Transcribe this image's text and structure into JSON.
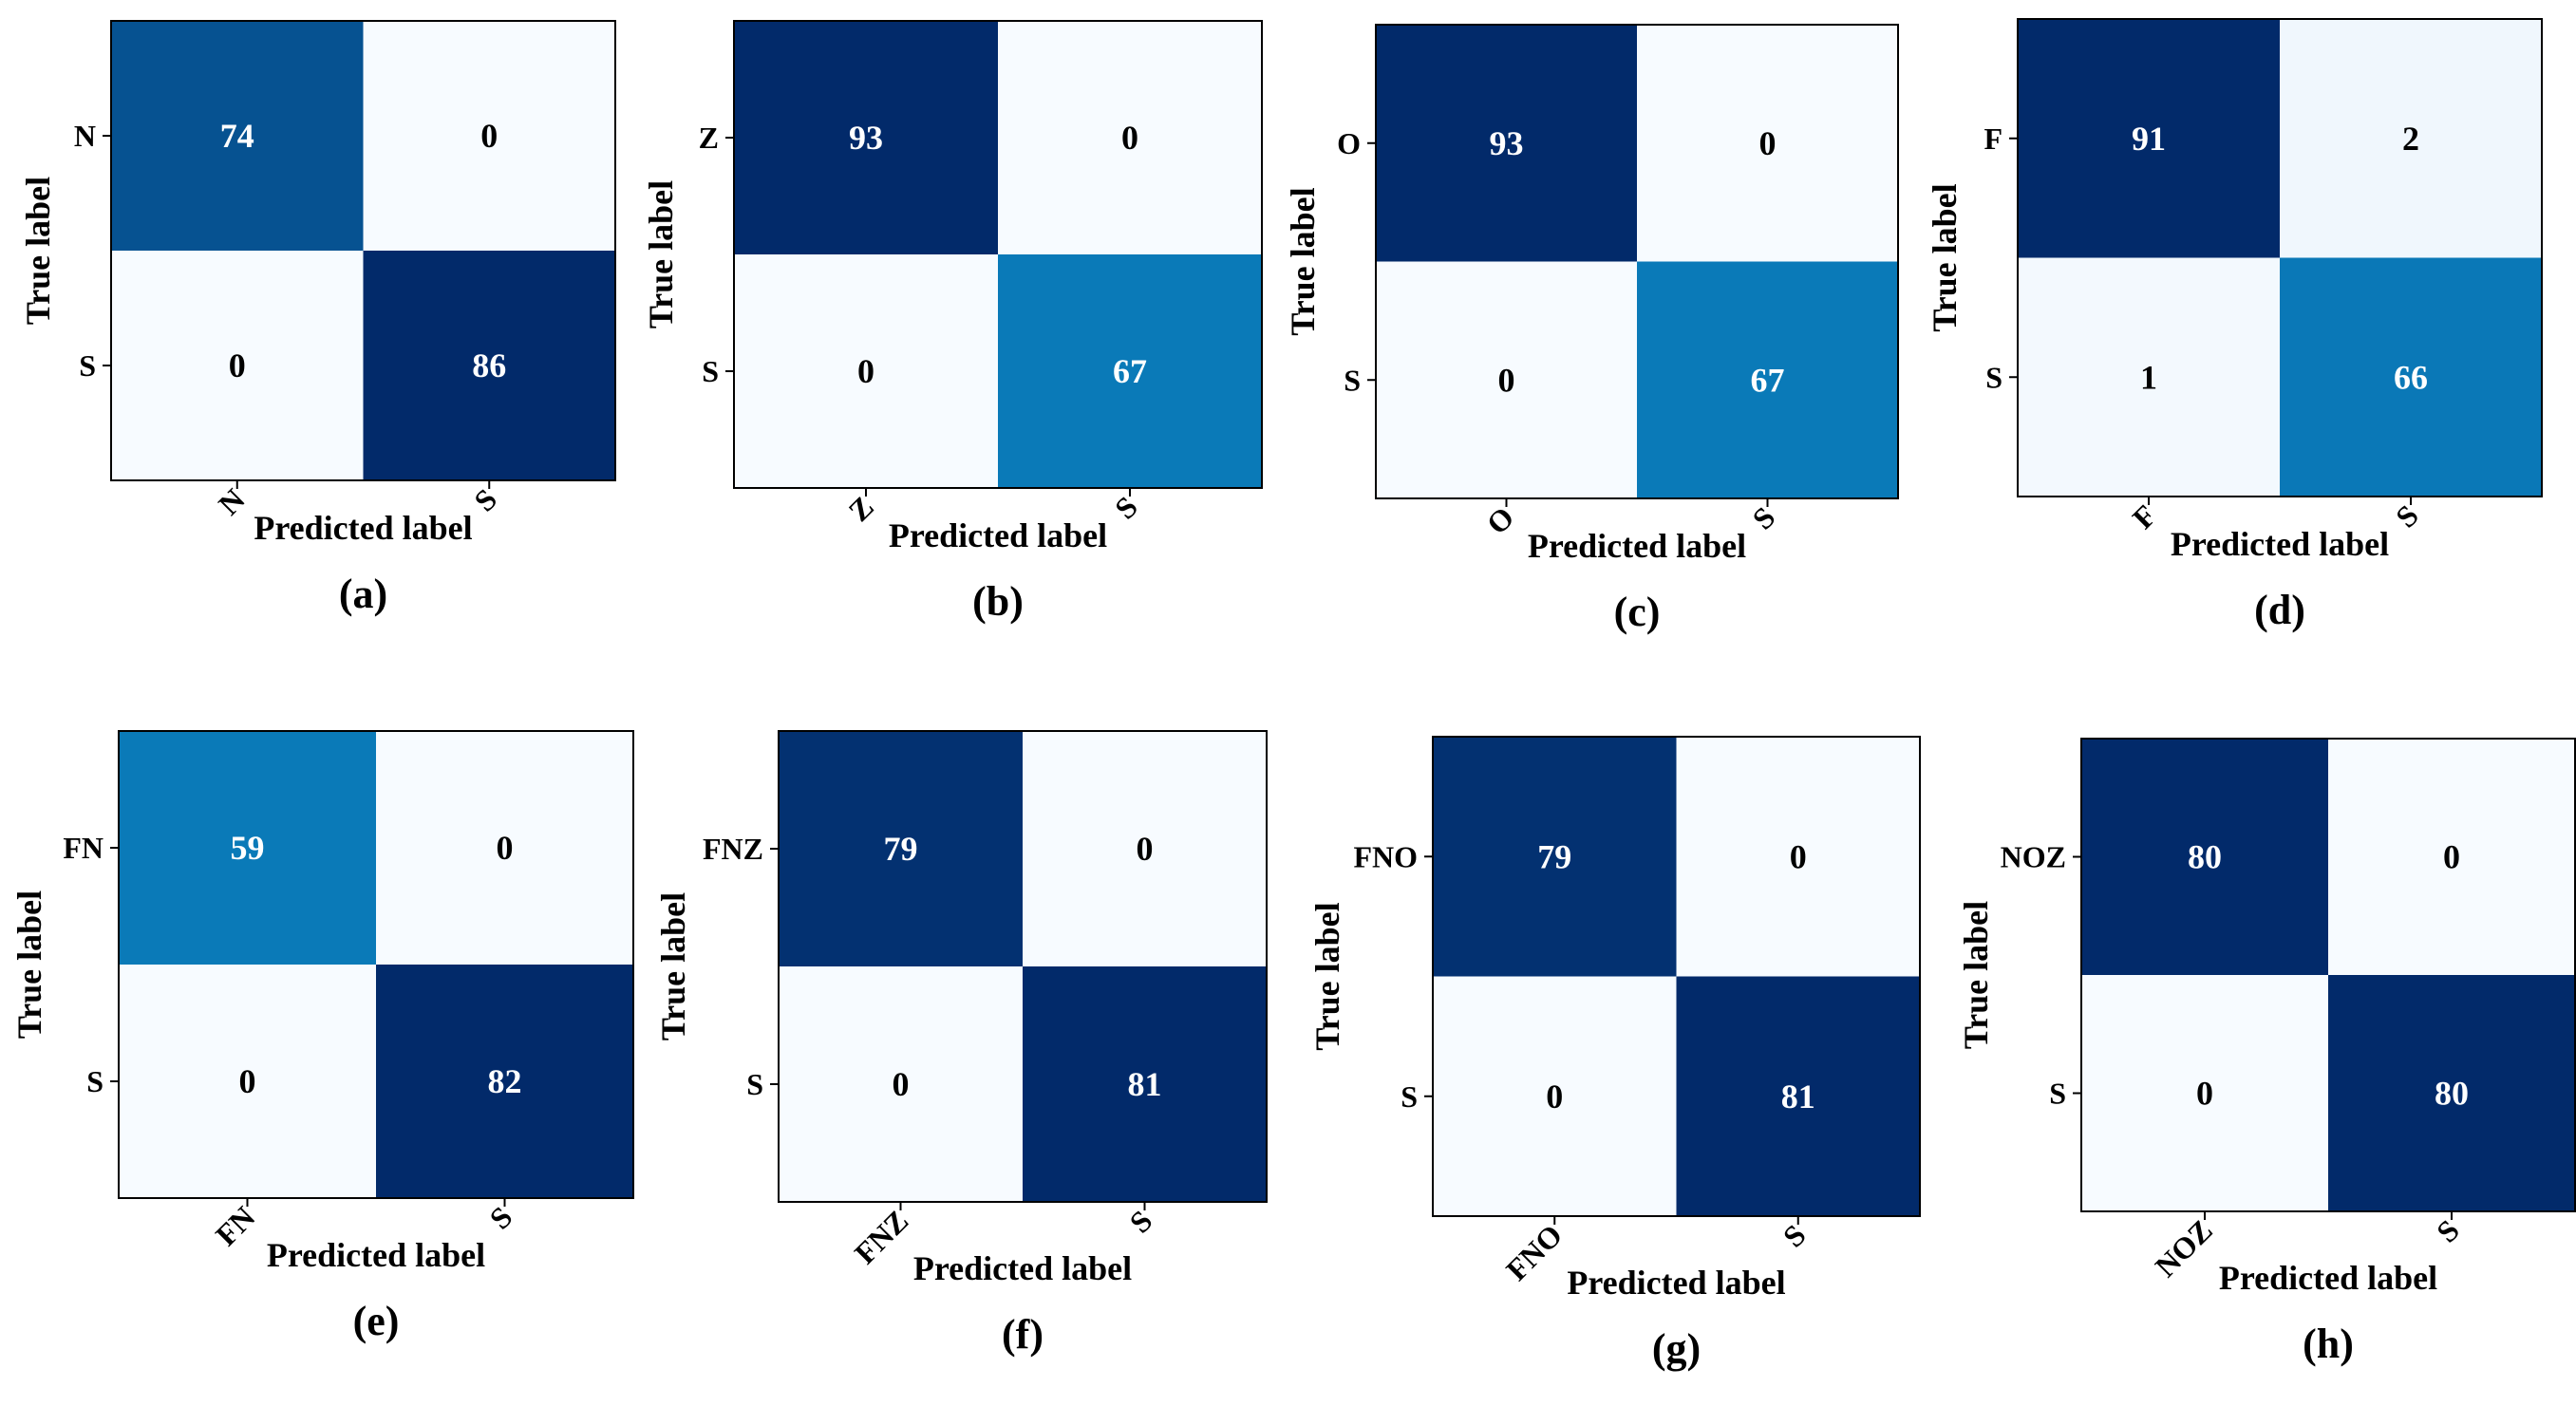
{
  "chart_data": [
    {
      "type": "heatmap",
      "panel_label": "(a)",
      "classes": [
        "N",
        "S"
      ],
      "matrix": [
        [
          74,
          0
        ],
        [
          0,
          86
        ]
      ],
      "xlabel": "Predicted label",
      "ylabel": "True label",
      "colormap": "Blues",
      "vmax": 86
    },
    {
      "type": "heatmap",
      "panel_label": "(b)",
      "classes": [
        "Z",
        "S"
      ],
      "matrix": [
        [
          93,
          0
        ],
        [
          0,
          67
        ]
      ],
      "xlabel": "Predicted label",
      "ylabel": "True label",
      "colormap": "Blues",
      "vmax": 93
    },
    {
      "type": "heatmap",
      "panel_label": "(c)",
      "classes": [
        "O",
        "S"
      ],
      "matrix": [
        [
          93,
          0
        ],
        [
          0,
          67
        ]
      ],
      "xlabel": "Predicted label",
      "ylabel": "True label",
      "colormap": "Blues",
      "vmax": 93
    },
    {
      "type": "heatmap",
      "panel_label": "(d)",
      "classes": [
        "F",
        "S"
      ],
      "matrix": [
        [
          91,
          2
        ],
        [
          1,
          66
        ]
      ],
      "xlabel": "Predicted label",
      "ylabel": "True label",
      "colormap": "Blues",
      "vmax": 91
    },
    {
      "type": "heatmap",
      "panel_label": "(e)",
      "classes": [
        "FN",
        "S"
      ],
      "matrix": [
        [
          59,
          0
        ],
        [
          0,
          82
        ]
      ],
      "xlabel": "Predicted label",
      "ylabel": "True label",
      "colormap": "Blues",
      "vmax": 82
    },
    {
      "type": "heatmap",
      "panel_label": "(f)",
      "classes": [
        "FNZ",
        "S"
      ],
      "matrix": [
        [
          79,
          0
        ],
        [
          0,
          81
        ]
      ],
      "xlabel": "Predicted label",
      "ylabel": "True label",
      "colormap": "Blues",
      "vmax": 81
    },
    {
      "type": "heatmap",
      "panel_label": "(g)",
      "classes": [
        "FNO",
        "S"
      ],
      "matrix": [
        [
          79,
          0
        ],
        [
          0,
          81
        ]
      ],
      "xlabel": "Predicted label",
      "ylabel": "True label",
      "colormap": "Blues",
      "vmax": 81
    },
    {
      "type": "heatmap",
      "panel_label": "(h)",
      "classes": [
        "NOZ",
        "S"
      ],
      "matrix": [
        [
          80,
          0
        ],
        [
          0,
          80
        ]
      ],
      "xlabel": "Predicted label",
      "ylabel": "True label",
      "colormap": "Blues",
      "vmax": 80
    }
  ],
  "colors": {
    "cell_low": "#f7fbff",
    "cell_mid": "#0a7ab8",
    "cell_high": "#022a6a",
    "text_light": "#ffffff",
    "text_dark": "#000000",
    "frame": "#000000"
  }
}
